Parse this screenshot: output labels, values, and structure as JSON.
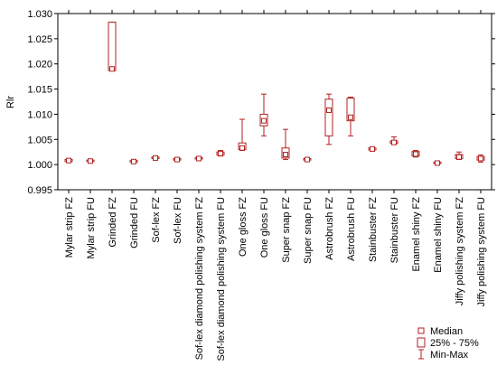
{
  "chart_data": {
    "type": "box",
    "ylabel": "Rlr",
    "xlabel": "",
    "ylim": [
      0.995,
      1.03
    ],
    "yticks": [
      0.995,
      1.0,
      1.005,
      1.01,
      1.015,
      1.02,
      1.025,
      1.03
    ],
    "ytick_labels": [
      "0.995",
      "1.000",
      "1.005",
      "1.010",
      "1.015",
      "1.020",
      "1.025",
      "1.030"
    ],
    "grid": false,
    "legend_position": "bottom-right",
    "legend": [
      {
        "label": "Median",
        "symbol": "median"
      },
      {
        "label": "25% - 75%",
        "symbol": "box"
      },
      {
        "label": "Min-Max",
        "symbol": "whisker"
      }
    ],
    "colors": {
      "box": "#b22222",
      "axis": "#000000"
    },
    "categories": [
      "Mylar strip FZ",
      "Mylar strip FU",
      "Grinded FZ",
      "Grinded FU",
      "Sof-lex FZ",
      "Sof-lex FU",
      "Sof-lex diamond polishing system FZ",
      "Sof-lex diamond polishing system FU",
      "One gloss FZ",
      "One gloss FU",
      "Super snap FZ",
      "Super snap FU",
      "Astrobrush FZ",
      "Astrobrush FU",
      "Stainbuster FZ",
      "Stainbuster FU",
      "Enamel shiny FZ",
      "Enamel shiny FU",
      "Jiffy polishing system FZ",
      "Jiffy polishing system FU"
    ],
    "boxes": [
      {
        "min": 1.0004,
        "q1": 1.0006,
        "median": 1.0008,
        "q3": 1.001,
        "max": 1.0012
      },
      {
        "min": 1.0005,
        "q1": 1.0006,
        "median": 1.0007,
        "q3": 1.0009,
        "max": 1.001
      },
      {
        "min": 1.0186,
        "q1": 1.0187,
        "median": 1.019,
        "q3": 1.0283,
        "max": 1.0283
      },
      {
        "min": 1.0004,
        "q1": 1.0005,
        "median": 1.0006,
        "q3": 1.0008,
        "max": 1.0009
      },
      {
        "min": 1.001,
        "q1": 1.0012,
        "median": 1.0013,
        "q3": 1.0015,
        "max": 1.0017
      },
      {
        "min": 1.0008,
        "q1": 1.0009,
        "median": 1.001,
        "q3": 1.0012,
        "max": 1.0013
      },
      {
        "min": 1.001,
        "q1": 1.0011,
        "median": 1.0012,
        "q3": 1.0014,
        "max": 1.0015
      },
      {
        "min": 1.0017,
        "q1": 1.0019,
        "median": 1.0022,
        "q3": 1.0025,
        "max": 1.0028
      },
      {
        "min": 1.0028,
        "q1": 1.003,
        "median": 1.0033,
        "q3": 1.0043,
        "max": 1.009
      },
      {
        "min": 1.0057,
        "q1": 1.0077,
        "median": 1.0087,
        "q3": 1.01,
        "max": 1.014
      },
      {
        "min": 1.001,
        "q1": 1.0013,
        "median": 1.002,
        "q3": 1.0033,
        "max": 1.007
      },
      {
        "min": 1.0008,
        "q1": 1.0009,
        "median": 1.001,
        "q3": 1.0012,
        "max": 1.0013
      },
      {
        "min": 1.004,
        "q1": 1.0057,
        "median": 1.0108,
        "q3": 1.013,
        "max": 1.014
      },
      {
        "min": 1.0057,
        "q1": 1.0087,
        "median": 1.0094,
        "q3": 1.0132,
        "max": 1.0134
      },
      {
        "min": 1.0027,
        "q1": 1.0029,
        "median": 1.0031,
        "q3": 1.0033,
        "max": 1.0035
      },
      {
        "min": 1.004,
        "q1": 1.0042,
        "median": 1.0044,
        "q3": 1.0047,
        "max": 1.0055
      },
      {
        "min": 1.0015,
        "q1": 1.0017,
        "median": 1.0021,
        "q3": 1.0026,
        "max": 1.0028
      },
      {
        "min": 1.0001,
        "q1": 1.0002,
        "median": 1.0003,
        "q3": 1.0005,
        "max": 1.0006
      },
      {
        "min": 1.001,
        "q1": 1.0012,
        "median": 1.0015,
        "q3": 1.002,
        "max": 1.0025
      },
      {
        "min": 1.0005,
        "q1": 1.0009,
        "median": 1.0012,
        "q3": 1.0016,
        "max": 1.0019
      }
    ]
  }
}
